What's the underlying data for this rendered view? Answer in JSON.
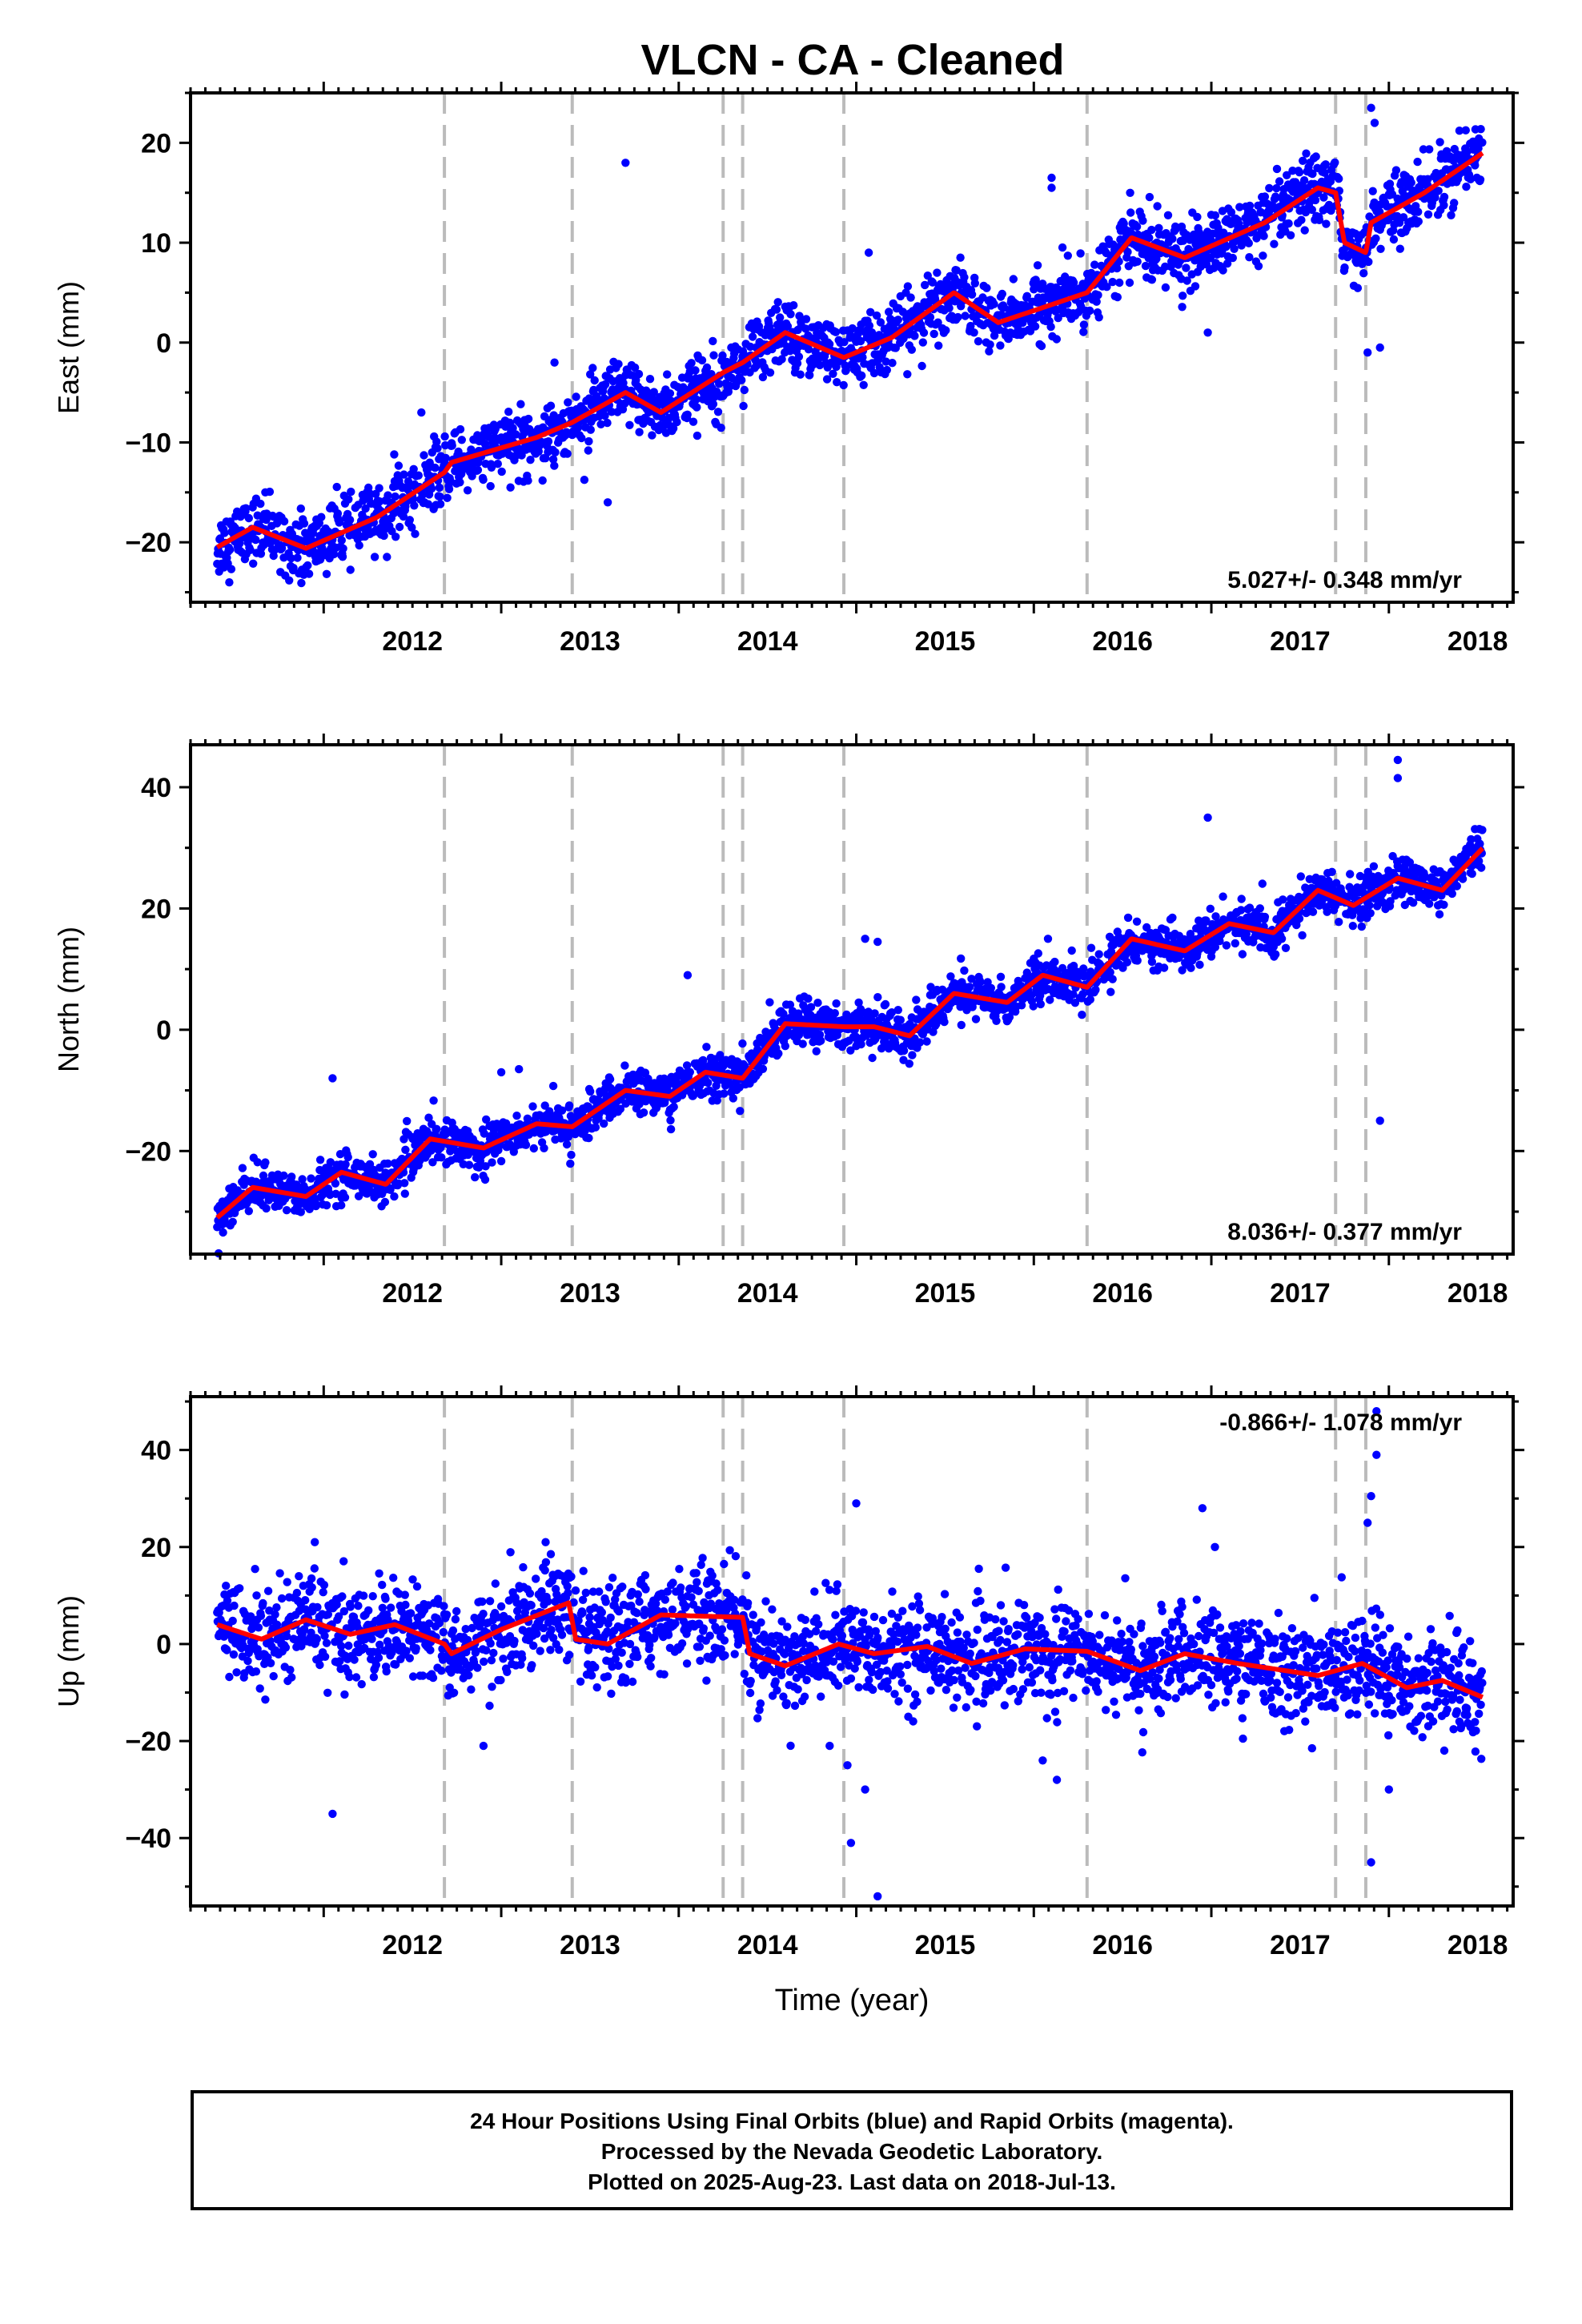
{
  "title": "VLCN  - CA - Cleaned",
  "footer": {
    "line1": "24 Hour Positions Using Final Orbits (blue) and Rapid Orbits (magenta).",
    "line2": "Processed by the Nevada Geodetic Laboratory.",
    "line3": "Plotted on 2025-Aug-23. Last data on 2018-Jul-13."
  },
  "colors": {
    "final_orbits": "#0000ff",
    "model": "#ff0000",
    "steps": "#bbbbbb"
  },
  "chart_data": [
    {
      "type": "scatter",
      "ylabel": "East (mm)",
      "xlabel": "",
      "xlim": [
        2011.25,
        2018.7
      ],
      "ylim": [
        -26,
        25
      ],
      "yticks": [
        -20,
        -10,
        0,
        10,
        20
      ],
      "xticks": [
        2012,
        2013,
        2014,
        2015,
        2016,
        2017,
        2018
      ],
      "rate_label": "5.027+/- 0.348 mm/yr",
      "rate_position": "bottom-right",
      "steps": [
        2012.68,
        2013.4,
        2014.25,
        2014.36,
        2014.93,
        2016.3,
        2017.7,
        2017.87
      ],
      "start": [
        2011.4,
        -20.5
      ],
      "end": [
        2018.53,
        19
      ],
      "trend_points": [
        [
          2011.4,
          -20.5
        ],
        [
          2011.6,
          -18.5
        ],
        [
          2011.9,
          -20.6
        ],
        [
          2012.3,
          -17.5
        ],
        [
          2012.68,
          -13
        ],
        [
          2012.72,
          -12
        ],
        [
          2013.2,
          -9.5
        ],
        [
          2013.4,
          -8
        ],
        [
          2013.7,
          -5
        ],
        [
          2013.9,
          -7
        ],
        [
          2014.25,
          -3
        ],
        [
          2014.36,
          -2
        ],
        [
          2014.6,
          1
        ],
        [
          2014.93,
          -1.5
        ],
        [
          2015.2,
          0.5
        ],
        [
          2015.55,
          5
        ],
        [
          2015.8,
          2
        ],
        [
          2016.3,
          5
        ],
        [
          2016.55,
          10.5
        ],
        [
          2016.85,
          8.5
        ],
        [
          2017.3,
          12
        ],
        [
          2017.6,
          15.5
        ],
        [
          2017.7,
          15
        ],
        [
          2017.75,
          10
        ],
        [
          2017.87,
          9
        ],
        [
          2017.9,
          12
        ],
        [
          2018.2,
          15
        ],
        [
          2018.53,
          19
        ]
      ],
      "seasonal_amp": 1.5,
      "scatter_sd": 1.6,
      "outliers": [
        [
          2016.1,
          16.5
        ],
        [
          2016.1,
          15.5
        ],
        [
          2017.9,
          23.5
        ],
        [
          2017.92,
          22
        ],
        [
          2017.88,
          -1
        ],
        [
          2017.95,
          -0.5
        ],
        [
          2015.07,
          9
        ],
        [
          2012.55,
          -7
        ],
        [
          2016.98,
          1
        ],
        [
          2013.3,
          -2
        ],
        [
          2013.6,
          -16
        ],
        [
          2013.7,
          18
        ]
      ]
    },
    {
      "type": "scatter",
      "ylabel": "North (mm)",
      "xlabel": "",
      "xlim": [
        2011.25,
        2018.7
      ],
      "ylim": [
        -37,
        47
      ],
      "yticks": [
        -20,
        0,
        20,
        40
      ],
      "xticks": [
        2012,
        2013,
        2014,
        2015,
        2016,
        2017,
        2018
      ],
      "rate_label": "8.036+/- 0.377 mm/yr",
      "rate_position": "bottom-right",
      "steps": [
        2012.68,
        2013.4,
        2014.25,
        2014.36,
        2014.93,
        2016.3,
        2017.7,
        2017.87
      ],
      "start": [
        2011.4,
        -31
      ],
      "end": [
        2018.53,
        30
      ],
      "trend_points": [
        [
          2011.4,
          -31
        ],
        [
          2011.6,
          -26
        ],
        [
          2011.9,
          -27.5
        ],
        [
          2012.1,
          -23.5
        ],
        [
          2012.35,
          -25.5
        ],
        [
          2012.6,
          -18
        ],
        [
          2012.9,
          -19.5
        ],
        [
          2013.2,
          -15.5
        ],
        [
          2013.4,
          -16
        ],
        [
          2013.7,
          -10
        ],
        [
          2013.95,
          -11
        ],
        [
          2014.15,
          -7
        ],
        [
          2014.36,
          -8
        ],
        [
          2014.6,
          1
        ],
        [
          2014.93,
          0.5
        ],
        [
          2015.1,
          0.5
        ],
        [
          2015.3,
          -1
        ],
        [
          2015.55,
          6
        ],
        [
          2015.85,
          4.5
        ],
        [
          2016.05,
          9
        ],
        [
          2016.3,
          7
        ],
        [
          2016.55,
          15
        ],
        [
          2016.85,
          13
        ],
        [
          2017.1,
          17.5
        ],
        [
          2017.35,
          16
        ],
        [
          2017.6,
          23
        ],
        [
          2017.8,
          20.5
        ],
        [
          2018.05,
          25
        ],
        [
          2018.3,
          23
        ],
        [
          2018.53,
          30
        ]
      ],
      "seasonal_amp": 1.8,
      "scatter_sd": 1.8,
      "outliers": [
        [
          2018.05,
          44.5
        ],
        [
          2018.05,
          41.5
        ],
        [
          2016.98,
          35
        ],
        [
          2014.05,
          9
        ],
        [
          2015.05,
          15
        ],
        [
          2015.12,
          14.5
        ],
        [
          2012.05,
          -8
        ],
        [
          2013.0,
          -7
        ],
        [
          2013.1,
          -6.5
        ],
        [
          2016.08,
          15
        ],
        [
          2017.95,
          -15
        ]
      ]
    },
    {
      "type": "scatter",
      "ylabel": "Up (mm)",
      "xlabel": "Time (year)",
      "xlim": [
        2011.25,
        2018.7
      ],
      "ylim": [
        -54,
        51
      ],
      "yticks": [
        -40,
        -20,
        0,
        20,
        40
      ],
      "xticks": [
        2012,
        2013,
        2014,
        2015,
        2016,
        2017,
        2018
      ],
      "rate_label": "-0.866+/- 1.078 mm/yr",
      "rate_position": "top-right",
      "steps": [
        2012.68,
        2013.4,
        2014.25,
        2014.36,
        2014.93,
        2016.3,
        2017.7,
        2017.87
      ],
      "start": [
        2011.4,
        4
      ],
      "end": [
        2018.53,
        -11
      ],
      "trend_points": [
        [
          2011.4,
          4
        ],
        [
          2011.65,
          1
        ],
        [
          2011.9,
          5
        ],
        [
          2012.15,
          2
        ],
        [
          2012.4,
          4
        ],
        [
          2012.68,
          0
        ],
        [
          2012.72,
          -2
        ],
        [
          2013.0,
          3
        ],
        [
          2013.38,
          8.5
        ],
        [
          2013.42,
          1
        ],
        [
          2013.6,
          0
        ],
        [
          2013.9,
          6
        ],
        [
          2014.36,
          5.5
        ],
        [
          2014.4,
          -2
        ],
        [
          2014.6,
          -4.5
        ],
        [
          2014.9,
          0
        ],
        [
          2015.1,
          -2
        ],
        [
          2015.4,
          -0.5
        ],
        [
          2015.65,
          -4
        ],
        [
          2015.95,
          -1
        ],
        [
          2016.3,
          -1.5
        ],
        [
          2016.6,
          -5.5
        ],
        [
          2016.85,
          -2
        ],
        [
          2017.15,
          -4
        ],
        [
          2017.6,
          -6.5
        ],
        [
          2017.85,
          -4
        ],
        [
          2018.1,
          -9
        ],
        [
          2018.3,
          -7.5
        ],
        [
          2018.53,
          -11
        ]
      ],
      "seasonal_amp": 2.5,
      "scatter_sd": 5,
      "outliers": [
        [
          2017.93,
          48
        ],
        [
          2017.93,
          39
        ],
        [
          2017.9,
          30.5
        ],
        [
          2017.88,
          25
        ],
        [
          2017.9,
          -45
        ],
        [
          2012.05,
          -35
        ],
        [
          2014.97,
          -41
        ],
        [
          2015.12,
          -52
        ],
        [
          2015.05,
          -30
        ],
        [
          2015.0,
          29
        ],
        [
          2013.25,
          21
        ],
        [
          2011.95,
          21
        ],
        [
          2016.95,
          28
        ],
        [
          2017.02,
          20
        ],
        [
          2012.9,
          -21
        ],
        [
          2016.13,
          -28
        ],
        [
          2016.05,
          -24
        ],
        [
          2014.95,
          -25
        ],
        [
          2014.85,
          -21
        ],
        [
          2018.0,
          -30
        ]
      ]
    }
  ]
}
